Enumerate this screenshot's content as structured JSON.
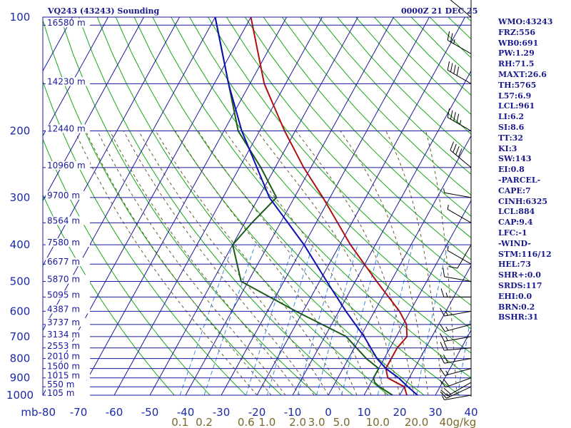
{
  "header": {
    "left": "VQ243 (43243) Sounding",
    "right": "0000Z 21 DEC 25"
  },
  "stats": [
    "WMO:43243",
    "FRZ:556",
    "WB0:691",
    "PW:1.29",
    "RH:71.5",
    "MAXT:26.6",
    "TH:5765",
    "L57:6.9",
    "LCL:961",
    "LI:6.2",
    "SI:8.6",
    "TT:32",
    "KI:3",
    "SW:143",
    "EI:0.8",
    "-PARCEL-",
    "CAPE:7",
    "CINH:6325",
    "LCL:884",
    "CAP:9.4",
    "LFC:-1",
    "-WIND-",
    "STM:116/12",
    "HEL:73",
    "SHR+:0.0",
    "SRDS:117",
    "EHI:0.0",
    "BRN:0.2",
    "BSHR:31"
  ],
  "colors": {
    "grid_blue": "#1a1a9c",
    "text_blue": "#1a1a8c",
    "dry_adiabat_green": "#18a818",
    "moist_adiabat": "#6b5a2a",
    "mixing_ratio": "#3c8cdc",
    "temperature": "#b01010",
    "dewpoint": "#185c18",
    "parcel": "#1010b0",
    "axis_label": "#1a2aa8",
    "mixing_label": "#7a6a2a",
    "wind": "#000000"
  },
  "chart_data": {
    "type": "line",
    "title": "VQ243 (43243) Sounding",
    "xlim": [
      -80,
      40
    ],
    "ylim": [
      1000,
      100
    ],
    "y_scale": "log-pressure",
    "pressure_levels": [
      100,
      200,
      300,
      400,
      500,
      600,
      700,
      800,
      900,
      1000
    ],
    "pressure_tick_labels": [
      "100",
      "200",
      "300",
      "400",
      "500",
      "600",
      "700",
      "800",
      "900",
      "1000"
    ],
    "temperature_tick_labels": [
      "mb-80",
      "-70",
      "-60",
      "-50",
      "-40",
      "-30",
      "-20",
      "-10",
      "0",
      "10",
      "20",
      "30",
      "40"
    ],
    "temperature_ticks": [
      -80,
      -70,
      -60,
      -50,
      -40,
      -30,
      -20,
      -10,
      0,
      10,
      20,
      30,
      40
    ],
    "height_labels": [
      {
        "p": 105,
        "text": "16580 m"
      },
      {
        "p": 150,
        "text": "14230 m"
      },
      {
        "p": 200,
        "text": "12440 m"
      },
      {
        "p": 250,
        "text": "10960 m"
      },
      {
        "p": 300,
        "text": "9700 m"
      },
      {
        "p": 350,
        "text": "8564 m"
      },
      {
        "p": 400,
        "text": "7580 m"
      },
      {
        "p": 450,
        "text": "6677 m"
      },
      {
        "p": 500,
        "text": "5870 m"
      },
      {
        "p": 550,
        "text": "5095 m"
      },
      {
        "p": 600,
        "text": "4387 m"
      },
      {
        "p": 650,
        "text": "3737 m"
      },
      {
        "p": 700,
        "text": "3134 m"
      },
      {
        "p": 750,
        "text": "2553 m"
      },
      {
        "p": 800,
        "text": "2010 m"
      },
      {
        "p": 850,
        "text": "1500 m"
      },
      {
        "p": 900,
        "text": "1015 m"
      },
      {
        "p": 950,
        "text": "550 m"
      },
      {
        "p": 1000,
        "text": "105 m"
      }
    ],
    "mixing_ratio_labels": [
      {
        "w": 0.1,
        "text": "0.1"
      },
      {
        "w": 0.2,
        "text": "0.2"
      },
      {
        "w": 0.6,
        "text": "0.6"
      },
      {
        "w": 1.0,
        "text": "1.0"
      },
      {
        "w": 2.0,
        "text": "2.0"
      },
      {
        "w": 3.0,
        "text": "3.0"
      },
      {
        "w": 5.0,
        "text": "5.0"
      },
      {
        "w": 10.0,
        "text": "10.0"
      },
      {
        "w": 20.0,
        "text": "20.0"
      },
      {
        "w": 40.0,
        "text": "40g/kg"
      }
    ],
    "series": [
      {
        "name": "temperature",
        "points": [
          [
            1000,
            22
          ],
          [
            950,
            20
          ],
          [
            925,
            17
          ],
          [
            900,
            14
          ],
          [
            850,
            12
          ],
          [
            800,
            12
          ],
          [
            750,
            12
          ],
          [
            700,
            13
          ],
          [
            650,
            11
          ],
          [
            600,
            7
          ],
          [
            500,
            -4
          ],
          [
            400,
            -17
          ],
          [
            300,
            -32
          ],
          [
            250,
            -42
          ],
          [
            200,
            -53
          ],
          [
            150,
            -66
          ],
          [
            100,
            -80
          ]
        ]
      },
      {
        "name": "dewpoint",
        "points": [
          [
            1000,
            18
          ],
          [
            950,
            13
          ],
          [
            925,
            11
          ],
          [
            900,
            10
          ],
          [
            850,
            10
          ],
          [
            800,
            5
          ],
          [
            700,
            -4
          ],
          [
            600,
            -22
          ],
          [
            500,
            -42
          ],
          [
            400,
            -50
          ],
          [
            350,
            -48
          ],
          [
            300,
            -45
          ],
          [
            250,
            -54
          ],
          [
            200,
            -66
          ],
          [
            150,
            -76
          ],
          [
            100,
            -90
          ]
        ]
      },
      {
        "name": "parcel",
        "points": [
          [
            1000,
            25
          ],
          [
            950,
            21
          ],
          [
            900,
            17
          ],
          [
            850,
            12
          ],
          [
            800,
            8
          ],
          [
            700,
            1
          ],
          [
            600,
            -8
          ],
          [
            500,
            -18
          ],
          [
            400,
            -30
          ],
          [
            300,
            -47
          ],
          [
            200,
            -65
          ],
          [
            150,
            -76
          ],
          [
            100,
            -90
          ]
        ]
      }
    ],
    "wind_barbs": [
      {
        "p": 1000,
        "dir": 260,
        "spd": 5
      },
      {
        "p": 950,
        "dir": 245,
        "spd": 15
      },
      {
        "p": 925,
        "dir": 240,
        "spd": 20
      },
      {
        "p": 900,
        "dir": 250,
        "spd": 20
      },
      {
        "p": 850,
        "dir": 255,
        "spd": 15
      },
      {
        "p": 800,
        "dir": 260,
        "spd": 20
      },
      {
        "p": 750,
        "dir": 265,
        "spd": 20
      },
      {
        "p": 700,
        "dir": 260,
        "spd": 15
      },
      {
        "p": 650,
        "dir": 255,
        "spd": 15
      },
      {
        "p": 600,
        "dir": 260,
        "spd": 15
      },
      {
        "p": 550,
        "dir": 270,
        "spd": 15
      },
      {
        "p": 500,
        "dir": 280,
        "spd": 10
      },
      {
        "p": 450,
        "dir": 300,
        "spd": 5
      },
      {
        "p": 400,
        "dir": 210,
        "spd": 10
      },
      {
        "p": 350,
        "dir": 300,
        "spd": 5
      },
      {
        "p": 300,
        "dir": 280,
        "spd": 5
      },
      {
        "p": 250,
        "dir": 310,
        "spd": 40
      },
      {
        "p": 200,
        "dir": 300,
        "spd": 45
      },
      {
        "p": 150,
        "dir": 300,
        "spd": 40
      },
      {
        "p": 125,
        "dir": 300,
        "spd": 25
      },
      {
        "p": 100,
        "dir": 310,
        "spd": 10
      }
    ]
  }
}
